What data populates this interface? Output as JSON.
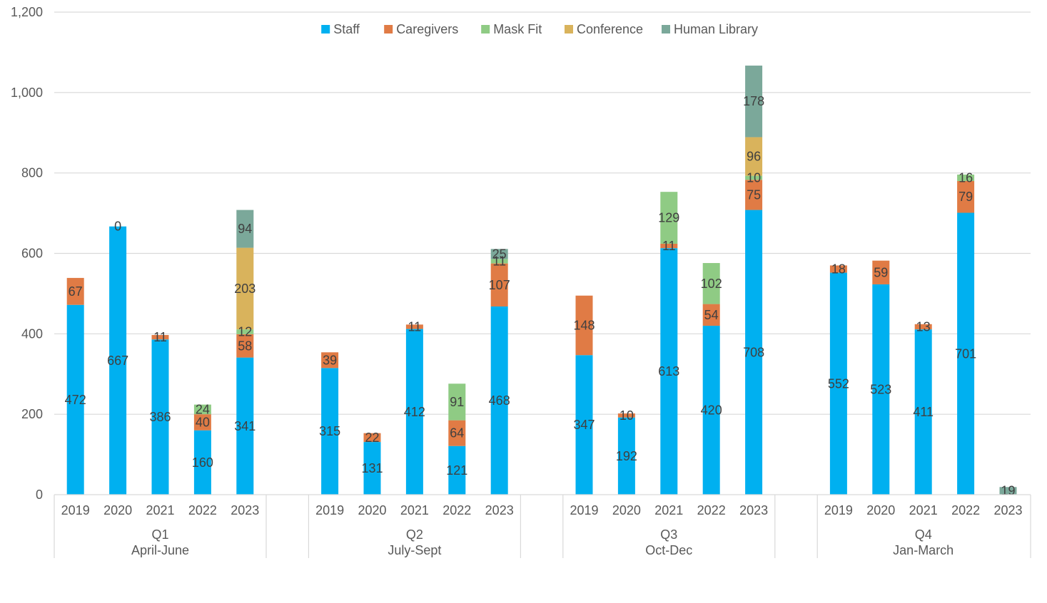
{
  "chart_data": {
    "type": "bar",
    "stacked": true,
    "ylim": [
      0,
      1200
    ],
    "yticks": [
      "0",
      "200",
      "400",
      "600",
      "800",
      "1,000",
      "1,200"
    ],
    "ytick_values": [
      0,
      200,
      400,
      600,
      800,
      1000,
      1200
    ],
    "grid": true,
    "legend_position": "top-center",
    "groups": [
      {
        "quarter": "Q1",
        "period": "April-June",
        "years": [
          "2019",
          "2020",
          "2021",
          "2022",
          "2023"
        ]
      },
      {
        "quarter": "Q2",
        "period": "July-Sept",
        "years": [
          "2019",
          "2020",
          "2021",
          "2022",
          "2023"
        ]
      },
      {
        "quarter": "Q3",
        "period": "Oct-Dec",
        "years": [
          "2019",
          "2020",
          "2021",
          "2022",
          "2023"
        ]
      },
      {
        "quarter": "Q4",
        "period": "Jan-March",
        "years": [
          "2019",
          "2020",
          "2021",
          "2022",
          "2023"
        ]
      }
    ],
    "series": [
      {
        "name": "Staff",
        "color": "#00B0F0",
        "values": [
          [
            472,
            667,
            386,
            160,
            341
          ],
          [
            315,
            131,
            412,
            121,
            468
          ],
          [
            347,
            192,
            613,
            420,
            708
          ],
          [
            552,
            523,
            411,
            701,
            null
          ]
        ]
      },
      {
        "name": "Caregivers",
        "color": "#E07B45",
        "values": [
          [
            67,
            0,
            11,
            40,
            58
          ],
          [
            39,
            22,
            11,
            64,
            107
          ],
          [
            148,
            10,
            11,
            54,
            75
          ],
          [
            18,
            59,
            13,
            79,
            null
          ]
        ]
      },
      {
        "name": "Mask Fit",
        "color": "#8FCB84",
        "values": [
          [
            null,
            null,
            null,
            24,
            12
          ],
          [
            null,
            null,
            null,
            91,
            11
          ],
          [
            null,
            null,
            129,
            102,
            10
          ],
          [
            null,
            null,
            null,
            16,
            null
          ]
        ]
      },
      {
        "name": "Conference",
        "color": "#D9B35C",
        "values": [
          [
            null,
            null,
            null,
            null,
            203
          ],
          [
            null,
            null,
            null,
            null,
            null
          ],
          [
            null,
            null,
            null,
            null,
            96
          ],
          [
            null,
            null,
            null,
            null,
            null
          ]
        ]
      },
      {
        "name": "Human Library",
        "color": "#7BA89A",
        "values": [
          [
            null,
            null,
            null,
            null,
            94
          ],
          [
            null,
            null,
            null,
            null,
            25
          ],
          [
            null,
            null,
            null,
            null,
            178
          ],
          [
            null,
            null,
            null,
            null,
            19
          ]
        ]
      }
    ]
  }
}
